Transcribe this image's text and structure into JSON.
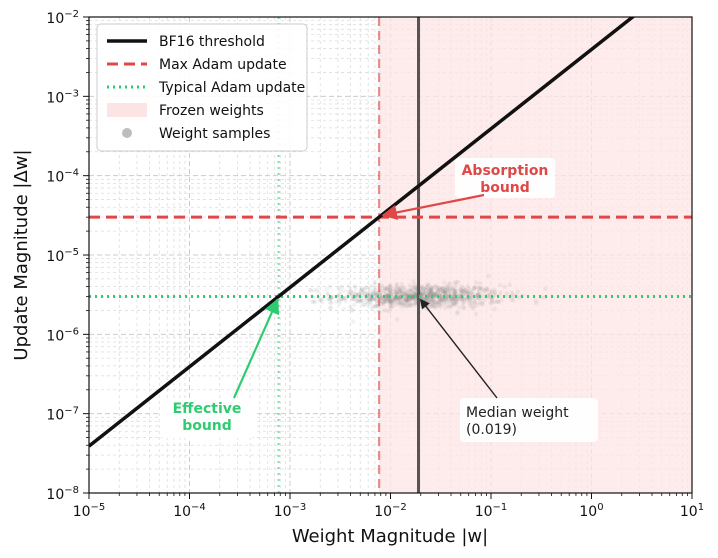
{
  "chart_data": {
    "type": "line",
    "xlabel": "Weight Magnitude |w|",
    "ylabel": "Update Magnitude |Δw|",
    "xscale": "log",
    "yscale": "log",
    "xlim": [
      1e-05,
      10
    ],
    "ylim": [
      1e-08,
      0.01
    ],
    "grid": "on (major and minor)",
    "legend_placement": "top-left",
    "x_tick_values": [
      1e-05,
      0.0001,
      0.001,
      0.01,
      0.1,
      1,
      10
    ],
    "x_tick_labels": [
      {
        "base": "10",
        "exp": "−5"
      },
      {
        "base": "10",
        "exp": "−4"
      },
      {
        "base": "10",
        "exp": "−3"
      },
      {
        "base": "10",
        "exp": "−2"
      },
      {
        "base": "10",
        "exp": "−1"
      },
      {
        "base": "10",
        "exp": "0"
      },
      {
        "base": "10",
        "exp": "1"
      }
    ],
    "y_tick_values": [
      1e-08,
      1e-07,
      1e-06,
      1e-05,
      0.0001,
      0.001,
      0.01
    ],
    "y_tick_labels": [
      {
        "base": "10",
        "exp": "−8"
      },
      {
        "base": "10",
        "exp": "−7"
      },
      {
        "base": "10",
        "exp": "−6"
      },
      {
        "base": "10",
        "exp": "−5"
      },
      {
        "base": "10",
        "exp": "−4"
      },
      {
        "base": "10",
        "exp": "−3"
      },
      {
        "base": "10",
        "exp": "−2"
      }
    ],
    "series": [
      {
        "name": "BF16 threshold",
        "style": "solid",
        "color": "#111111",
        "x": [
          1e-05,
          3
        ],
        "y": [
          3.9e-08,
          0.0117
        ]
      },
      {
        "name": "Max Adam update",
        "style": "dashed",
        "color": "#e04848",
        "y_const": 3e-05
      },
      {
        "name": "Typical Adam update",
        "style": "dotted",
        "color": "#2ecc71",
        "y_const": 3e-06
      },
      {
        "name": "Frozen weights",
        "style": "shaded",
        "color": "#fde4e4",
        "x_from": 0.0077,
        "x_to": 10
      },
      {
        "name": "Weight samples",
        "style": "scatter",
        "color": "#808080",
        "x_center": 0.019,
        "y_center": 3e-06
      }
    ],
    "reference_lines": {
      "median_weight_x": 0.019,
      "absorption_x": 0.0077,
      "effective_x": 0.00077
    },
    "legend": [
      {
        "label": "BF16 threshold",
        "kind": "solid",
        "color": "#111111"
      },
      {
        "label": "Max Adam update",
        "kind": "dashed",
        "color": "#e04848"
      },
      {
        "label": "Typical Adam update",
        "kind": "dotted",
        "color": "#2ecc71"
      },
      {
        "label": "Frozen weights",
        "kind": "patch",
        "color": "#fde4e4"
      },
      {
        "label": "Weight samples",
        "kind": "dot",
        "color": "#bdbdbd"
      }
    ],
    "annotations": {
      "absorption": {
        "lines": [
          "Absorption",
          "bound"
        ],
        "color": "#e04848",
        "point": [
          0.0077,
          3e-05
        ]
      },
      "effective": {
        "lines": [
          "Effective",
          "bound"
        ],
        "color": "#2ecc71",
        "point": [
          0.00077,
          3e-06
        ]
      },
      "median": {
        "lines": [
          "Median weight",
          "(0.019)"
        ],
        "color": "#222222",
        "point": [
          0.019,
          3e-06
        ]
      }
    }
  }
}
